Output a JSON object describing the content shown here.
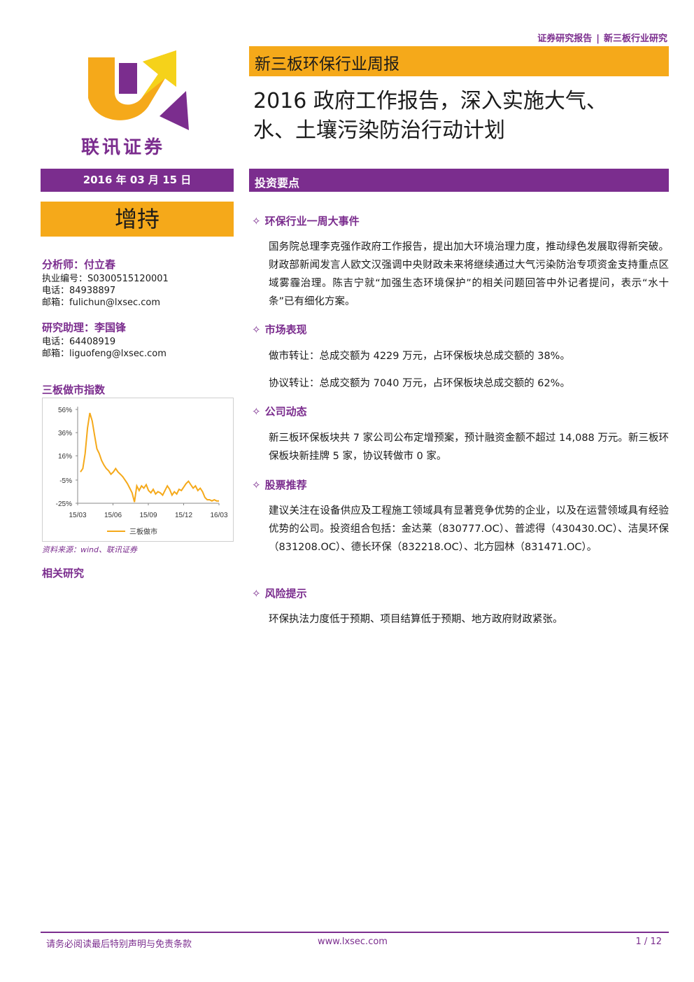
{
  "header": {
    "tag_left": "证券研究报告",
    "tag_sep": "|",
    "tag_right": "新三板行业研究"
  },
  "brand": {
    "logo_text": "联讯证券",
    "colors": {
      "purple": "#7b2d8e",
      "orange": "#f5a91a",
      "yellow": "#f5d21a"
    }
  },
  "report": {
    "series": "新三板环保行业周报",
    "title_line1": "2016 政府工作报告，深入实施大气、",
    "title_line2": "水、土壤污染防治行动计划",
    "date": "2016 年 03 月 15 日",
    "rating": "增持"
  },
  "analysts": [
    {
      "role": "分析师：付立春",
      "license": "执业编号：S0300515120001",
      "phone": "电话：84938897",
      "email": "邮箱：fulichun@lxsec.com"
    },
    {
      "role": "研究助理：李国锋",
      "phone": "电话：64408919",
      "email": "邮箱：liguofeng@lxsec.com"
    }
  ],
  "sidebar": {
    "chart_title": "三板做市指数",
    "chart_source": "资料来源：wind、联讯证券",
    "related_title": "相关研究"
  },
  "chart_data": {
    "type": "line",
    "series": [
      {
        "name": "三板做市",
        "color": "#f5a91a",
        "values": [
          2,
          5,
          18,
          40,
          53,
          46,
          34,
          22,
          18,
          12,
          8,
          5,
          3,
          0,
          2,
          5,
          2,
          0,
          -2,
          -5,
          -8,
          -12,
          -16,
          -24,
          -10,
          -14,
          -10,
          -12,
          -9,
          -14,
          -16,
          -13,
          -17,
          -15,
          -16,
          -18,
          -14,
          -10,
          -13,
          -18,
          -15,
          -17,
          -13,
          -14,
          -11,
          -8,
          -6,
          -9,
          -12,
          -10,
          -14,
          -12,
          -15,
          -20,
          -22,
          -22,
          -23,
          -22,
          -23,
          -23
        ]
      }
    ],
    "x_ticks": [
      "15/03",
      "15/06",
      "15/09",
      "15/12",
      "16/03"
    ],
    "y_ticks": [
      "56%",
      "36%",
      "16%",
      "-5%",
      "-25%"
    ],
    "y_tick_values": [
      56,
      36,
      16,
      -5,
      -25
    ],
    "ylim": [
      -25,
      56
    ],
    "legend": "bottom"
  },
  "invest": {
    "bar_label": "投资要点",
    "sections": [
      {
        "heading": "环保行业一周大事件",
        "paras": [
          "国务院总理李克强作政府工作报告，提出加大环境治理力度，推动绿色发展取得新突破。财政部新闻发言人欧文汉强调中央财政未来将继续通过大气污染防治专项资金支持重点区域雾霾治理。陈吉宁就“加强生态环境保护”的相关问题回答中外记者提问，表示“水十条”已有细化方案。"
        ]
      },
      {
        "heading": "市场表现",
        "paras": [
          "做市转让：总成交额为 4229 万元，占环保板块总成交额的 38%。",
          "协议转让：总成交额为 7040 万元，占环保板块总成交额的 62%。"
        ]
      },
      {
        "heading": "公司动态",
        "paras": [
          "新三板环保板块共 7 家公司公布定增预案，预计融资金额不超过 14,088 万元。新三板环保板块新挂牌 5 家，协议转做市 0 家。"
        ]
      },
      {
        "heading": "股票推荐",
        "paras": [
          "建议关注在设备供应及工程施工领域具有显著竞争优势的企业，以及在运营领域具有经验优势的公司。投资组合包括：金达莱（830777.OC）、普滤得（430430.OC）、洁昊环保（831208.OC）、德长环保（832218.OC）、北方园林（831471.OC）。"
        ]
      },
      {
        "heading": "风险提示",
        "paras": [
          "环保执法力度低于预期、项目结算低于预期、地方政府财政紧张。"
        ]
      }
    ]
  },
  "footer": {
    "disclaimer": "请务必阅读最后特别声明与免责条款",
    "website": "www.lxsec.com",
    "page": "1 / 12"
  }
}
